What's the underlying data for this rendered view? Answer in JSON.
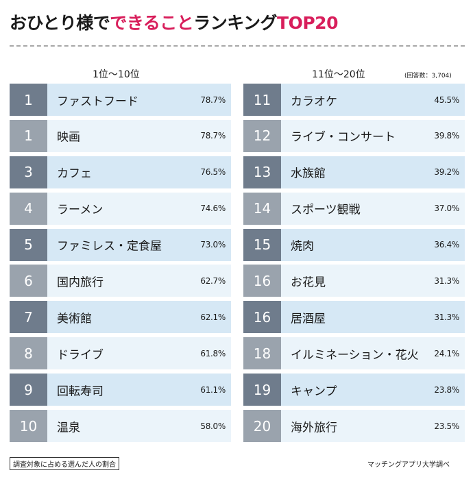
{
  "header": {
    "title_part1": "おひとり様で",
    "title_accent": "できること",
    "title_part2": "ランキング",
    "title_accent2": "TOP20"
  },
  "columns": {
    "left_header": "1位〜10位",
    "right_header": "11位〜20位",
    "respondents": "(回答数：3,704)"
  },
  "footer": {
    "note": "調査対象に占める選んだ人の割合",
    "source": "マッチングアプリ大学調べ"
  },
  "colors": {
    "accent": "#d81e5b",
    "rank_dark": "#6f7c8c",
    "rank_light": "#9aa3ad",
    "row_dark": "#d6e8f5",
    "row_light": "#ebf4fa"
  },
  "chart_data": {
    "type": "table",
    "title": "おひとり様でできることランキングTOP20",
    "columns": [
      "rank",
      "item",
      "percent"
    ],
    "unit": "%",
    "rows": [
      {
        "rank": "1",
        "item": "ファストフード",
        "percent": "78.7%"
      },
      {
        "rank": "1",
        "item": "映画",
        "percent": "78.7%"
      },
      {
        "rank": "3",
        "item": "カフェ",
        "percent": "76.5%"
      },
      {
        "rank": "4",
        "item": "ラーメン",
        "percent": "74.6%"
      },
      {
        "rank": "5",
        "item": "ファミレス・定食屋",
        "percent": "73.0%"
      },
      {
        "rank": "6",
        "item": "国内旅行",
        "percent": "62.7%"
      },
      {
        "rank": "7",
        "item": "美術館",
        "percent": "62.1%"
      },
      {
        "rank": "8",
        "item": "ドライブ",
        "percent": "61.8%"
      },
      {
        "rank": "9",
        "item": "回転寿司",
        "percent": "61.1%"
      },
      {
        "rank": "10",
        "item": "温泉",
        "percent": "58.0%"
      },
      {
        "rank": "11",
        "item": "カラオケ",
        "percent": "45.5%"
      },
      {
        "rank": "12",
        "item": "ライブ・コンサート",
        "percent": "39.8%"
      },
      {
        "rank": "13",
        "item": "水族館",
        "percent": "39.2%"
      },
      {
        "rank": "14",
        "item": "スポーツ観戦",
        "percent": "37.0%"
      },
      {
        "rank": "15",
        "item": "焼肉",
        "percent": "36.4%"
      },
      {
        "rank": "16",
        "item": "お花見",
        "percent": "31.3%"
      },
      {
        "rank": "16",
        "item": "居酒屋",
        "percent": "31.3%"
      },
      {
        "rank": "18",
        "item": "イルミネーション・花火",
        "percent": "24.1%"
      },
      {
        "rank": "19",
        "item": "キャンプ",
        "percent": "23.8%"
      },
      {
        "rank": "20",
        "item": "海外旅行",
        "percent": "23.5%"
      }
    ]
  }
}
